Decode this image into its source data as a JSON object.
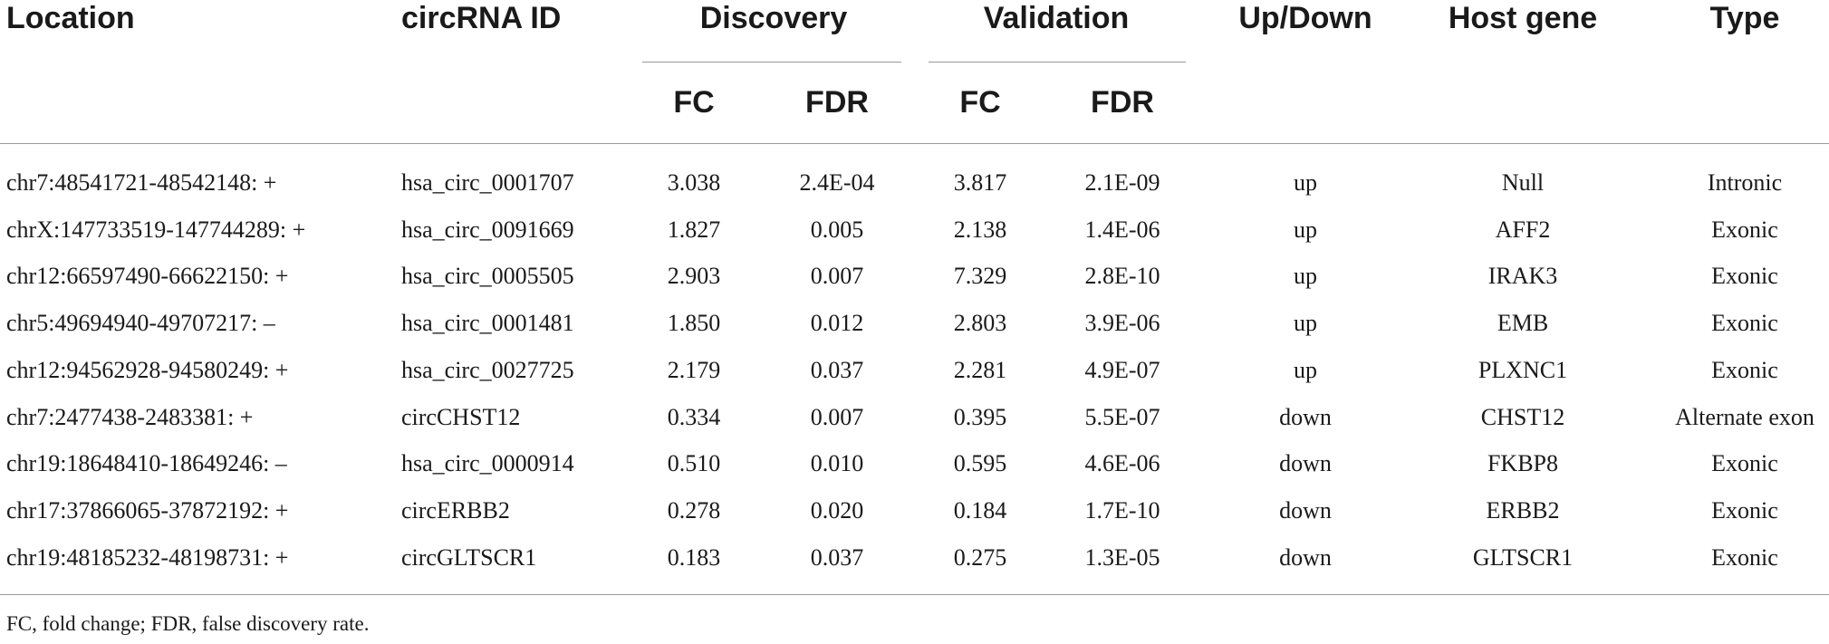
{
  "table": {
    "headers": {
      "location": "Location",
      "circrna_id": "circRNA ID",
      "discovery": "Discovery",
      "validation": "Validation",
      "up_down": "Up/Down",
      "host_gene": "Host gene",
      "type": "Type",
      "fc": "FC",
      "fdr": "FDR"
    },
    "rows": [
      {
        "location": "chr7:48541721-48542148: +",
        "circrna_id": "hsa_circ_0001707",
        "disc_fc": "3.038",
        "disc_fdr": "2.4E-04",
        "val_fc": "3.817",
        "val_fdr": "2.1E-09",
        "up_down": "up",
        "host_gene": "Null",
        "type": "Intronic"
      },
      {
        "location": "chrX:147733519-147744289: +",
        "circrna_id": "hsa_circ_0091669",
        "disc_fc": "1.827",
        "disc_fdr": "0.005",
        "val_fc": "2.138",
        "val_fdr": "1.4E-06",
        "up_down": "up",
        "host_gene": "AFF2",
        "type": "Exonic"
      },
      {
        "location": "chr12:66597490-66622150: +",
        "circrna_id": "hsa_circ_0005505",
        "disc_fc": "2.903",
        "disc_fdr": "0.007",
        "val_fc": "7.329",
        "val_fdr": "2.8E-10",
        "up_down": "up",
        "host_gene": "IRAK3",
        "type": "Exonic"
      },
      {
        "location": "chr5:49694940-49707217: –",
        "circrna_id": "hsa_circ_0001481",
        "disc_fc": "1.850",
        "disc_fdr": "0.012",
        "val_fc": "2.803",
        "val_fdr": "3.9E-06",
        "up_down": "up",
        "host_gene": "EMB",
        "type": "Exonic"
      },
      {
        "location": "chr12:94562928-94580249: +",
        "circrna_id": "hsa_circ_0027725",
        "disc_fc": "2.179",
        "disc_fdr": "0.037",
        "val_fc": "2.281",
        "val_fdr": "4.9E-07",
        "up_down": "up",
        "host_gene": "PLXNC1",
        "type": "Exonic"
      },
      {
        "location": "chr7:2477438-2483381: +",
        "circrna_id": "circCHST12",
        "disc_fc": "0.334",
        "disc_fdr": "0.007",
        "val_fc": "0.395",
        "val_fdr": "5.5E-07",
        "up_down": "down",
        "host_gene": "CHST12",
        "type": "Alternate exon"
      },
      {
        "location": "chr19:18648410-18649246: –",
        "circrna_id": "hsa_circ_0000914",
        "disc_fc": "0.510",
        "disc_fdr": "0.010",
        "val_fc": "0.595",
        "val_fdr": "4.6E-06",
        "up_down": "down",
        "host_gene": "FKBP8",
        "type": "Exonic"
      },
      {
        "location": "chr17:37866065-37872192: +",
        "circrna_id": "circERBB2",
        "disc_fc": "0.278",
        "disc_fdr": "0.020",
        "val_fc": "0.184",
        "val_fdr": "1.7E-10",
        "up_down": "down",
        "host_gene": "ERBB2",
        "type": "Exonic"
      },
      {
        "location": "chr19:48185232-48198731: +",
        "circrna_id": "circGLTSCR1",
        "disc_fc": "0.183",
        "disc_fdr": "0.037",
        "val_fc": "0.275",
        "val_fdr": "1.3E-05",
        "up_down": "down",
        "host_gene": "GLTSCR1",
        "type": "Exonic"
      }
    ]
  },
  "footnote": "FC, fold change; FDR, false discovery rate."
}
